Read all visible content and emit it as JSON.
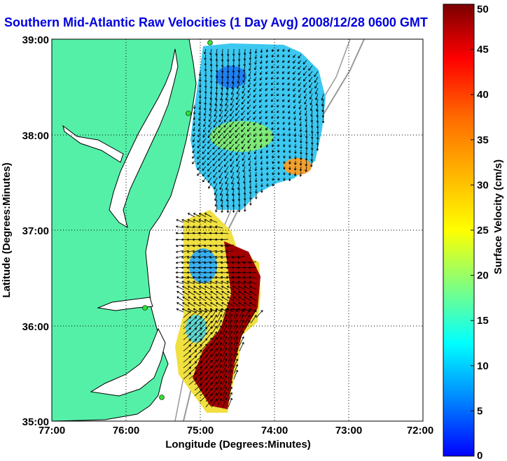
{
  "title": "Southern Mid-Atlantic Raw Velocities (1 Day Avg) 2008/12/28 0600 GMT",
  "map": {
    "x_label": "Longitude (Degrees:Minutes)",
    "y_label": "Latitude (Degrees:Minutes)",
    "x_ticks": [
      "77:00",
      "76:00",
      "75:00",
      "74:00",
      "73:00",
      "72:00"
    ],
    "y_ticks": [
      "39:00",
      "38:00",
      "37:00",
      "36:00",
      "35:00"
    ],
    "land_color": "#55f0a8",
    "ocean_color": "#ffffff",
    "grid": "dotted"
  },
  "colorbar": {
    "label": "Surface Velocity (cm/s)",
    "min": 0,
    "max": 50,
    "ticks": [
      "0",
      "5",
      "10",
      "15",
      "20",
      "25",
      "30",
      "35",
      "40",
      "45",
      "50"
    ]
  }
}
